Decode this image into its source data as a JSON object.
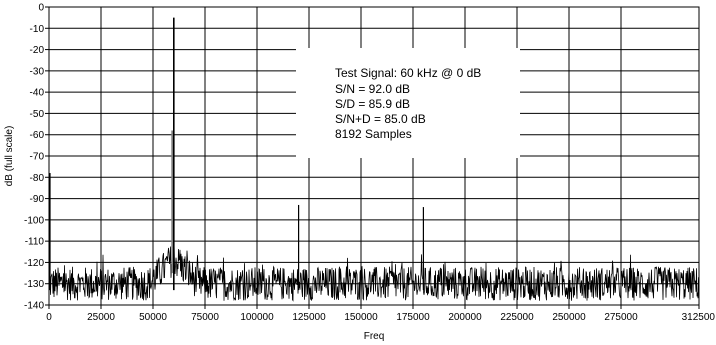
{
  "chart_data": {
    "type": "line",
    "title": "",
    "xlabel": "Freq",
    "ylabel": "dB (full scale)",
    "xlim": [
      0,
      312500
    ],
    "ylim": [
      -140,
      0
    ],
    "x_ticks": [
      0,
      25000,
      50000,
      75000,
      100000,
      125000,
      150000,
      175000,
      200000,
      225000,
      250000,
      275000,
      312500
    ],
    "x_tick_labels": [
      "0",
      "25000",
      "50000",
      "75000",
      "100000",
      "125000",
      "150000",
      "175000",
      "200000",
      "225000",
      "250000",
      "275000",
      "312500"
    ],
    "y_ticks": [
      0,
      -10,
      -20,
      -30,
      -40,
      -50,
      -60,
      -70,
      -80,
      -90,
      -100,
      -110,
      -120,
      -130,
      -140
    ],
    "y_tick_labels": [
      "0",
      "-10",
      "-20",
      "-30",
      "-40",
      "-50",
      "-60",
      "-70",
      "-80",
      "-90",
      "-100",
      "-110",
      "-120",
      "-130",
      "-140"
    ],
    "grid": true,
    "noise_floor": {
      "center_db": -130,
      "spread_db": 8
    },
    "peaks": [
      {
        "freq": 0,
        "db": -78
      },
      {
        "freq": 60000,
        "db": -5
      },
      {
        "freq": 120000,
        "db": -93
      },
      {
        "freq": 180000,
        "db": -94
      }
    ],
    "annotation": {
      "lines": [
        "Test Signal: 60 kHz @ 0 dB",
        "S/N = 92.0 dB",
        "S/D = 85.9 dB",
        "S/N+D = 85.0 dB",
        "8192 Samples"
      ]
    },
    "colors": {
      "trace": "#000000",
      "peak_skirt": "#808080",
      "grid": "#000000",
      "background": "#ffffff"
    }
  }
}
